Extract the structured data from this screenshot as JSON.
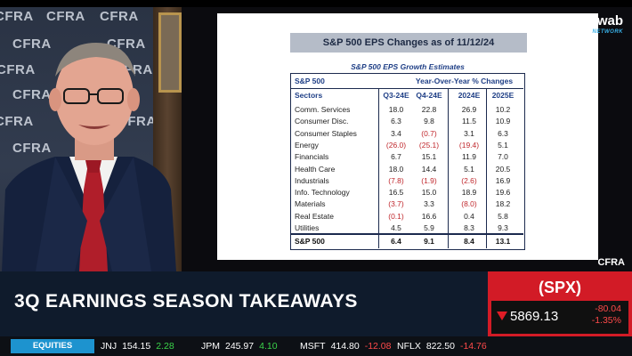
{
  "background": {
    "wall_text": [
      "CFRA",
      "CFRA",
      "CFRA",
      "CFRA",
      "CFRA",
      "CFRA",
      "CFRA",
      "CFRA",
      "CFRA",
      "CFRA",
      "CFRA"
    ]
  },
  "slide": {
    "title": "S&P 500 EPS Changes as of 11/12/24",
    "subtitle": "S&P 500 EPS Growth Estimates",
    "table": {
      "header1": {
        "left": "S&P 500",
        "right": "Year-Over-Year % Changes"
      },
      "header2": [
        "Sectors",
        "Q3-24E",
        "Q4-24E",
        "2024E",
        "2025E"
      ],
      "rows": [
        {
          "sector": "Comm. Services",
          "values": [
            "18.0",
            "22.8",
            "26.9",
            "10.2"
          ],
          "neg": [
            false,
            false,
            false,
            false
          ]
        },
        {
          "sector": "Consumer Disc.",
          "values": [
            "6.3",
            "9.8",
            "11.5",
            "10.9"
          ],
          "neg": [
            false,
            false,
            false,
            false
          ]
        },
        {
          "sector": "Consumer Staples",
          "values": [
            "3.4",
            "(0.7)",
            "3.1",
            "6.3"
          ],
          "neg": [
            false,
            true,
            false,
            false
          ]
        },
        {
          "sector": "Energy",
          "values": [
            "(26.0)",
            "(25.1)",
            "(19.4)",
            "5.1"
          ],
          "neg": [
            true,
            true,
            true,
            false
          ]
        },
        {
          "sector": "Financials",
          "values": [
            "6.7",
            "15.1",
            "11.9",
            "7.0"
          ],
          "neg": [
            false,
            false,
            false,
            false
          ]
        },
        {
          "sector": "Health Care",
          "values": [
            "18.0",
            "14.4",
            "5.1",
            "20.5"
          ],
          "neg": [
            false,
            false,
            false,
            false
          ]
        },
        {
          "sector": "Industrials",
          "values": [
            "(7.8)",
            "(1.9)",
            "(2.6)",
            "16.9"
          ],
          "neg": [
            true,
            true,
            true,
            false
          ]
        },
        {
          "sector": "Info. Technology",
          "values": [
            "16.5",
            "15.0",
            "18.9",
            "19.6"
          ],
          "neg": [
            false,
            false,
            false,
            false
          ]
        },
        {
          "sector": "Materials",
          "values": [
            "(3.7)",
            "3.3",
            "(8.0)",
            "18.2"
          ],
          "neg": [
            true,
            false,
            true,
            false
          ]
        },
        {
          "sector": "Real Estate",
          "values": [
            "(0.1)",
            "16.6",
            "0.4",
            "5.8"
          ],
          "neg": [
            true,
            false,
            false,
            false
          ]
        },
        {
          "sector": "Utilities",
          "values": [
            "4.5",
            "5.9",
            "8.3",
            "9.3"
          ],
          "neg": [
            false,
            false,
            false,
            false
          ]
        }
      ],
      "total": {
        "sector": "S&P 500",
        "values": [
          "6.4",
          "9.1",
          "8.4",
          "13.1"
        ]
      }
    }
  },
  "branding": {
    "network_logo": "Schwab",
    "network_sub": "NETWORK",
    "source_logo": "CFRA"
  },
  "lower_third": {
    "headline": "3Q EARNINGS SEASON TAKEAWAYS"
  },
  "quote": {
    "symbol": "(SPX)",
    "price": "5869.13",
    "change": "-80.04",
    "change_pct": "-1.35%",
    "direction": "down"
  },
  "ticker": {
    "label": "EQUITIES",
    "items": [
      {
        "symbol": "JNJ",
        "price": "154.15",
        "change": "2.28",
        "direction": "up"
      },
      {
        "symbol": "JPM",
        "price": "245.97",
        "change": "4.10",
        "direction": "up"
      },
      {
        "symbol": "MSFT",
        "price": "414.80",
        "change": "-12.08",
        "direction": "down"
      },
      {
        "symbol": "NFLX",
        "price": "822.50",
        "change": "-14.76",
        "direction": "down"
      }
    ]
  },
  "colors": {
    "accent_red": "#d21b26",
    "negative": "#c0282d",
    "positive": "#3ad34a",
    "ticker_label": "#1d93cf",
    "table_header": "#1f3f86"
  }
}
